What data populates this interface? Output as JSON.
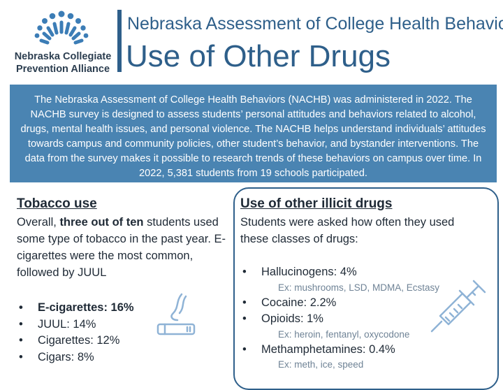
{
  "logo": {
    "line1": "Nebraska Collegiate",
    "line2": "Prevention Alliance",
    "color": "#3c7db6"
  },
  "header": {
    "subtitle": "Nebraska Assessment of College Health Behaviors",
    "title": "Use of Other Drugs"
  },
  "intro": "The Nebraska Assessment of College Health Behaviors (NACHB) was administered in 2022. The NACHB survey is designed to assess students’ personal attitudes and behaviors related to alcohol, drugs, mental health issues, and personal violence. The NACHB helps understand individuals’ attitudes towards campus and community policies, other student’s behavior, and bystander interventions. The data from the survey makes it possible to research trends of these behaviors on campus over time. In 2022, 5,381 students from 19 schools participated.",
  "tobacco": {
    "heading": "Tobacco use",
    "para_start": "Overall, ",
    "para_bold": "three out of ten",
    "para_end": " students used some type of tobacco in the past year. E-cigarettes were the most common, followed by JUUL",
    "items": [
      "E-cigarettes: 16%",
      "JUUL: 14%",
      "Cigarettes: 12%",
      "Cigars: 8%"
    ]
  },
  "illicit": {
    "heading": "Use of other illicit drugs",
    "para": "Students were asked how often they used these classes of drugs:",
    "items": [
      {
        "label": "Hallucinogens: 4%",
        "example": "Ex: mushrooms, LSD, MDMA, Ecstasy"
      },
      {
        "label": "Cocaine: 2.2%"
      },
      {
        "label": "Opioids: 1%",
        "example": "Ex: heroin, fentanyl, oxycodone"
      },
      {
        "label": "Methamphetamines: 0.4%",
        "example": "Ex: meth, ice, speed"
      }
    ]
  },
  "bullet_char": "•",
  "colors": {
    "accent": "#2e5f8a",
    "banner": "#4a84b2",
    "icon": "#8fb3d6"
  },
  "icons": [
    "logo-mark-icon",
    "vape-pen-icon",
    "syringe-icon"
  ]
}
